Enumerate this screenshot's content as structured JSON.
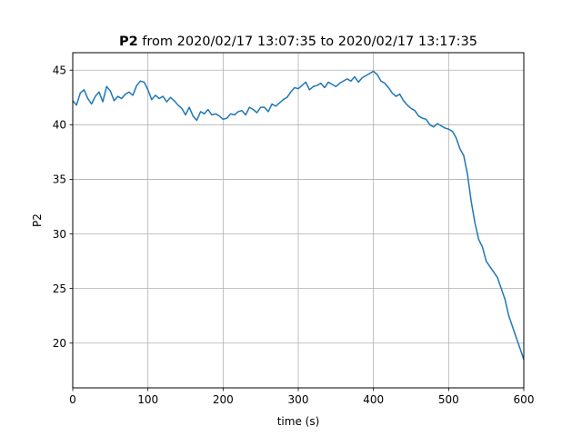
{
  "chart_data": {
    "type": "line",
    "title": {
      "bold": "P2",
      "rest": " from 2020/02/17 13:07:35 to 2020/02/17 13:17:35"
    },
    "xlabel": "time (s)",
    "ylabel": "P2",
    "xlim": [
      0,
      600
    ],
    "ylim": [
      15.9,
      46.6
    ],
    "xticks": [
      0,
      100,
      200,
      300,
      400,
      500,
      600
    ],
    "yticks": [
      20,
      25,
      30,
      35,
      40,
      45
    ],
    "grid": true,
    "line_color": "#1f77b4",
    "series": [
      {
        "x": [
          0,
          5,
          10,
          15,
          20,
          25,
          30,
          35,
          40,
          45,
          50,
          55,
          60,
          65,
          70,
          75,
          80,
          85,
          90,
          95,
          100,
          105,
          110,
          115,
          120,
          125,
          130,
          135,
          140,
          145,
          150,
          155,
          160,
          165,
          170,
          175,
          180,
          185,
          190,
          195,
          200,
          205,
          210,
          215,
          220,
          225,
          230,
          235,
          240,
          245,
          250,
          255,
          260,
          265,
          270,
          275,
          280,
          285,
          290,
          295,
          300,
          305,
          310,
          315,
          320,
          325,
          330,
          335,
          340,
          345,
          350,
          355,
          360,
          365,
          370,
          375,
          380,
          385,
          390,
          395,
          400,
          405,
          410,
          415,
          420,
          425,
          430,
          435,
          440,
          445,
          450,
          455,
          460,
          465,
          470,
          475,
          480,
          485,
          490,
          495,
          500,
          505,
          510,
          515,
          520,
          525,
          530,
          535,
          540,
          545,
          550,
          555,
          560,
          565,
          570,
          575,
          580,
          585,
          590,
          595,
          600
        ],
        "values": [
          42.2,
          41.8,
          42.9,
          43.2,
          42.4,
          41.9,
          42.6,
          43.0,
          42.1,
          43.5,
          43.1,
          42.2,
          42.6,
          42.4,
          42.8,
          43.0,
          42.7,
          43.6,
          44.0,
          43.9,
          43.2,
          42.3,
          42.7,
          42.4,
          42.6,
          42.1,
          42.5,
          42.2,
          41.8,
          41.5,
          40.9,
          41.6,
          40.8,
          40.4,
          41.2,
          41.0,
          41.4,
          40.9,
          41.0,
          40.8,
          40.5,
          40.6,
          41.0,
          40.9,
          41.2,
          41.3,
          40.9,
          41.6,
          41.4,
          41.1,
          41.6,
          41.6,
          41.2,
          41.9,
          41.7,
          42.0,
          42.3,
          42.5,
          43.0,
          43.4,
          43.3,
          43.6,
          43.9,
          43.2,
          43.5,
          43.6,
          43.8,
          43.4,
          43.9,
          43.7,
          43.5,
          43.8,
          44.0,
          44.2,
          44.0,
          44.4,
          43.9,
          44.3,
          44.5,
          44.7,
          44.9,
          44.6,
          44.0,
          43.8,
          43.4,
          42.9,
          42.6,
          42.8,
          42.2,
          41.8,
          41.5,
          41.3,
          40.8,
          40.6,
          40.5,
          40.0,
          39.8,
          40.1,
          39.9,
          39.7,
          39.6,
          39.4,
          38.8,
          37.8,
          37.2,
          35.5,
          33.0,
          31.0,
          29.5,
          28.8,
          27.5,
          27.0,
          26.5,
          26.0,
          25.0,
          24.0,
          22.5,
          21.5,
          20.5,
          19.5,
          18.5
        ]
      }
    ]
  }
}
